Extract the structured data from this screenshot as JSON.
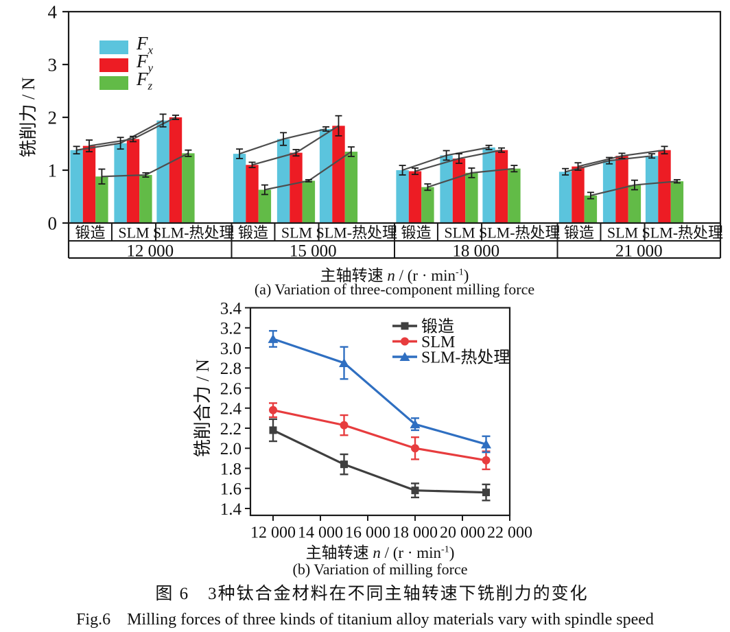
{
  "figure": {
    "caption_a": "(a) Variation of three-component milling force",
    "caption_b": "(b) Variation of milling force",
    "caption_zh": "图 6　3种钛合金材料在不同主轴转速下铣削力的变化",
    "caption_en": "Fig.6　Milling forces of three kinds of titanium alloy materials vary with spindle speed"
  },
  "colors": {
    "axis": "#1a1a1a",
    "bar_fx": "#5bc4dd",
    "bar_fy": "#ed1c24",
    "bar_fz": "#62bb47",
    "connector": "#4d4d4d",
    "line_forged": "#3f3f3f",
    "line_slm": "#e73c3e",
    "line_slm_ht": "#2f6fc1"
  },
  "chart_data": [
    {
      "id": "three-component-milling-force",
      "type": "bar",
      "title": "",
      "ylabel": "铣削力 / N",
      "ylim": [
        0,
        4
      ],
      "yticks": [
        "0",
        "1",
        "2",
        "3",
        "4"
      ],
      "grid": false,
      "legend_position": "top-left-inside",
      "group_labels": [
        "12 000",
        "15 000",
        "18 000",
        "21 000"
      ],
      "material_labels": [
        "锻造",
        "SLM",
        "SLM-热处理"
      ],
      "legend": [
        {
          "main": "F",
          "sub": "x"
        },
        {
          "main": "F",
          "sub": "y"
        },
        {
          "main": "F",
          "sub": "z"
        }
      ],
      "connector_color": "#4d4d4d",
      "xlabel_parts": {
        "pre": "主轴转速 ",
        "var": "n",
        "mid": " / (r · min",
        "sup": "-1",
        "post": ")"
      },
      "series": [
        {
          "name": "Fx",
          "color": "#5bc4dd",
          "values": [
            [
              1.38,
              1.51,
              1.94
            ],
            [
              1.31,
              1.59,
              1.78
            ],
            [
              1.0,
              1.28,
              1.43
            ],
            [
              0.97,
              1.18,
              1.27
            ]
          ],
          "errors": [
            [
              0.07,
              0.11,
              0.12
            ],
            [
              0.09,
              0.12,
              0.04
            ],
            [
              0.09,
              0.09,
              0.04
            ],
            [
              0.06,
              0.06,
              0.04
            ]
          ]
        },
        {
          "name": "Fy",
          "color": "#ed1c24",
          "values": [
            [
              1.46,
              1.59,
              2.0
            ],
            [
              1.1,
              1.33,
              1.84
            ],
            [
              0.98,
              1.22,
              1.38
            ],
            [
              1.07,
              1.27,
              1.38
            ]
          ],
          "errors": [
            [
              0.11,
              0.05,
              0.04
            ],
            [
              0.05,
              0.06,
              0.19
            ],
            [
              0.06,
              0.09,
              0.04
            ],
            [
              0.07,
              0.05,
              0.07
            ]
          ]
        },
        {
          "name": "Fz",
          "color": "#62bb47",
          "values": [
            [
              0.88,
              0.91,
              1.32
            ],
            [
              0.63,
              0.8,
              1.35
            ],
            [
              0.68,
              0.95,
              1.03
            ],
            [
              0.52,
              0.72,
              0.79
            ]
          ],
          "errors": [
            [
              0.14,
              0.04,
              0.06
            ],
            [
              0.09,
              0.02,
              0.09
            ],
            [
              0.06,
              0.09,
              0.06
            ],
            [
              0.06,
              0.09,
              0.03
            ]
          ]
        }
      ]
    },
    {
      "id": "resultant-milling-force",
      "type": "line",
      "title": "",
      "ylabel": "铣削合力 / N",
      "ylim": [
        1.4,
        3.4
      ],
      "ytick_step": 0.2,
      "ytick_labels": [
        "1.4",
        "1.6",
        "1.8",
        "2.0",
        "2.2",
        "2.4",
        "2.6",
        "2.8",
        "3.0",
        "3.2",
        "3.4"
      ],
      "xlim": [
        10900,
        22000
      ],
      "xticks": [
        12000,
        14000,
        16000,
        18000,
        20000,
        22000
      ],
      "xtick_labels": [
        "12 000",
        "14 000",
        "16 000",
        "18 000",
        "20 000",
        "22 000"
      ],
      "x": [
        12000,
        15000,
        18000,
        21000
      ],
      "grid": false,
      "legend_position": "top-right-inside",
      "xlabel_parts": {
        "pre": "主轴转速 ",
        "var": "n",
        "mid": " / (r · min",
        "sup": "-1",
        "post": ")"
      },
      "series": [
        {
          "name": "锻造",
          "marker": "square",
          "color": "#3f3f3f",
          "values": [
            2.18,
            1.84,
            1.58,
            1.56
          ],
          "errors": [
            0.11,
            0.1,
            0.07,
            0.08
          ]
        },
        {
          "name": "SLM",
          "marker": "circle",
          "color": "#e73c3e",
          "values": [
            2.38,
            2.23,
            2.0,
            1.88
          ],
          "errors": [
            0.07,
            0.1,
            0.11,
            0.09
          ]
        },
        {
          "name": "SLM-热处理",
          "marker": "triangle",
          "color": "#2f6fc1",
          "values": [
            3.09,
            2.85,
            2.24,
            2.04
          ],
          "errors": [
            0.08,
            0.16,
            0.06,
            0.08
          ]
        }
      ]
    }
  ]
}
